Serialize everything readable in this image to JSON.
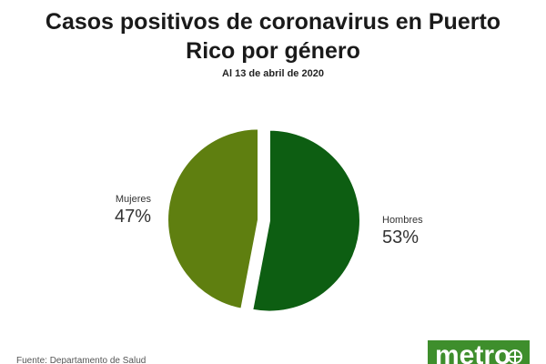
{
  "chart_data": {
    "type": "pie",
    "title": "Casos positivos de coronavirus en Puerto Rico por género",
    "subtitle": "Al 13 de abril de 2020",
    "slices": [
      {
        "name": "Hombres",
        "value": 53,
        "label": "53%",
        "color": "#0d5e12"
      },
      {
        "name": "Mujeres",
        "value": 47,
        "label": "47%",
        "color": "#5f7f10"
      }
    ]
  },
  "footer": {
    "source": "Fuente: Departamento de Salud",
    "logo_text": "metro",
    "logo_color": "#3e8e2c"
  }
}
